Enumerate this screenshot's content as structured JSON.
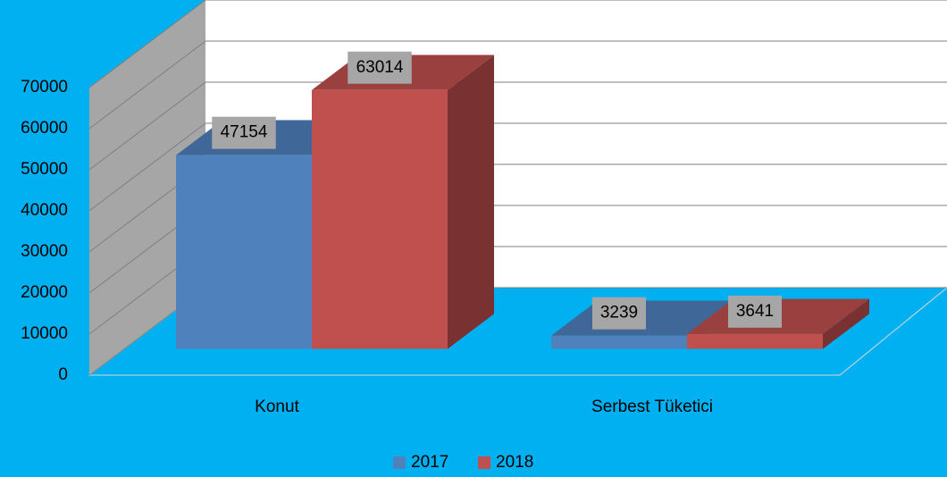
{
  "chart_data": {
    "type": "bar",
    "categories": [
      "Konut",
      "Serbest Tüketici"
    ],
    "series": [
      {
        "name": "2017",
        "color": "#4f81bd",
        "values": [
          47154,
          3239
        ]
      },
      {
        "name": "2018",
        "color": "#c0504d",
        "values": [
          63014,
          3641
        ]
      }
    ],
    "ylim": [
      0,
      70000
    ],
    "yticks": [
      0,
      10000,
      20000,
      30000,
      40000,
      50000,
      60000,
      70000
    ],
    "grid": true,
    "legend": "bottom"
  }
}
